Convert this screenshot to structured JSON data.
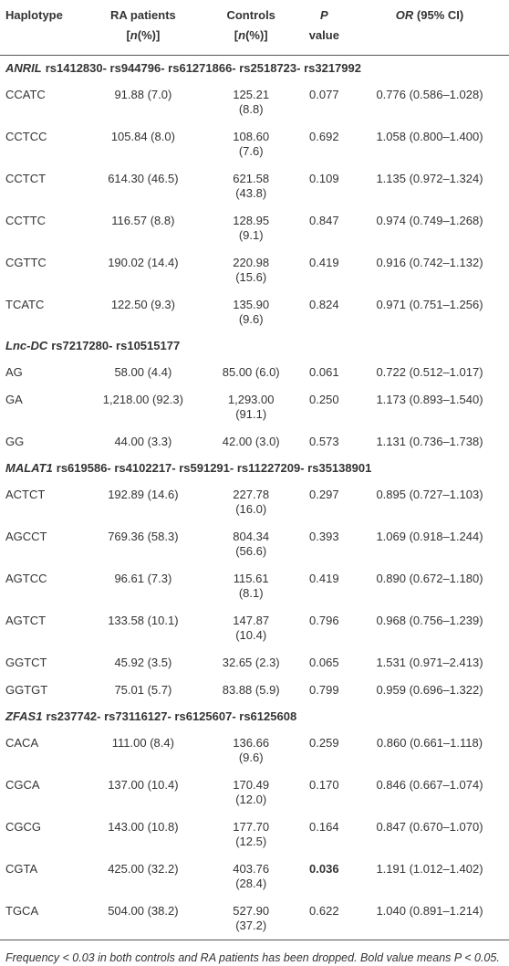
{
  "table": {
    "header": [
      [
        [
          {
            "text": "Haplotype",
            "italic": false
          }
        ]
      ],
      [
        [
          {
            "text": "RA patients",
            "italic": false
          }
        ],
        [
          {
            "text": "[",
            "italic": false
          },
          {
            "text": "n",
            "italic": true
          },
          {
            "text": "(%)]",
            "italic": false
          }
        ]
      ],
      [
        [
          {
            "text": "Controls",
            "italic": false
          }
        ],
        [
          {
            "text": "[",
            "italic": false
          },
          {
            "text": "n",
            "italic": true
          },
          {
            "text": "(%)]",
            "italic": false
          }
        ]
      ],
      [
        [
          {
            "text": "P",
            "italic": true
          }
        ],
        [
          {
            "text": "value",
            "italic": false
          }
        ]
      ],
      [
        [
          {
            "text": "OR",
            "italic": true
          },
          {
            "text": " (95% CI)",
            "italic": false
          }
        ]
      ]
    ],
    "groups": [
      {
        "gene": "ANRIL",
        "snps": "rs1412830- rs944796- rs61271866- rs2518723- rs3217992",
        "rows": [
          {
            "haplotype": "CCATC",
            "ra": "91.88 (7.0)",
            "controls": "125.21 (8.8)",
            "p": "0.077",
            "or": "0.776 (0.586–1.028)"
          },
          {
            "haplotype": "CCTCC",
            "ra": "105.84 (8.0)",
            "controls": "108.60 (7.6)",
            "p": "0.692",
            "or": "1.058 (0.800–1.400)"
          },
          {
            "haplotype": "CCTCT",
            "ra": "614.30 (46.5)",
            "controls": "621.58 (43.8)",
            "p": "0.109",
            "or": "1.135 (0.972–1.324)"
          },
          {
            "haplotype": "CCTTC",
            "ra": "116.57 (8.8)",
            "controls": "128.95 (9.1)",
            "p": "0.847",
            "or": "0.974 (0.749–1.268)"
          },
          {
            "haplotype": "CGTTC",
            "ra": "190.02 (14.4)",
            "controls": "220.98 (15.6)",
            "p": "0.419",
            "or": "0.916 (0.742–1.132)"
          },
          {
            "haplotype": "TCATC",
            "ra": "122.50 (9.3)",
            "controls": "135.90 (9.6)",
            "p": "0.824",
            "or": "0.971 (0.751–1.256)"
          }
        ]
      },
      {
        "gene": "Lnc-DC",
        "snps": "rs7217280- rs10515177",
        "rows": [
          {
            "haplotype": "AG",
            "ra": "58.00 (4.4)",
            "controls": "85.00 (6.0)",
            "p": "0.061",
            "or": "0.722 (0.512–1.017)"
          },
          {
            "haplotype": "GA",
            "ra": "1,218.00 (92.3)",
            "controls": "1,293.00 (91.1)",
            "p": "0.250",
            "or": "1.173 (0.893–1.540)"
          },
          {
            "haplotype": "GG",
            "ra": "44.00 (3.3)",
            "controls": "42.00 (3.0)",
            "p": "0.573",
            "or": "1.131 (0.736–1.738)"
          }
        ]
      },
      {
        "gene": "MALAT1",
        "snps": "rs619586- rs4102217- rs591291- rs11227209- rs35138901",
        "rows": [
          {
            "haplotype": "ACTCT",
            "ra": "192.89 (14.6)",
            "controls": "227.78 (16.0)",
            "p": "0.297",
            "or": "0.895 (0.727–1.103)"
          },
          {
            "haplotype": "AGCCT",
            "ra": "769.36 (58.3)",
            "controls": "804.34 (56.6)",
            "p": "0.393",
            "or": "1.069 (0.918–1.244)"
          },
          {
            "haplotype": "AGTCC",
            "ra": "96.61 (7.3)",
            "controls": "115.61 (8.1)",
            "p": "0.419",
            "or": "0.890 (0.672–1.180)"
          },
          {
            "haplotype": "AGTCT",
            "ra": "133.58 (10.1)",
            "controls": "147.87 (10.4)",
            "p": "0.796",
            "or": "0.968 (0.756–1.239)"
          },
          {
            "haplotype": "GGTCT",
            "ra": "45.92 (3.5)",
            "controls": "32.65 (2.3)",
            "p": "0.065",
            "or": "1.531 (0.971–2.413)"
          },
          {
            "haplotype": "GGTGT",
            "ra": "75.01 (5.7)",
            "controls": "83.88 (5.9)",
            "p": "0.799",
            "or": "0.959 (0.696–1.322)"
          }
        ]
      },
      {
        "gene": "ZFAS1",
        "snps": "rs237742- rs73116127- rs6125607- rs6125608",
        "rows": [
          {
            "haplotype": "CACA",
            "ra": "111.00 (8.4)",
            "controls": "136.66 (9.6)",
            "p": "0.259",
            "or": "0.860 (0.661–1.118)"
          },
          {
            "haplotype": "CGCA",
            "ra": "137.00 (10.4)",
            "controls": "170.49 (12.0)",
            "p": "0.170",
            "or": "0.846 (0.667–1.074)"
          },
          {
            "haplotype": "CGCG",
            "ra": "143.00 (10.8)",
            "controls": "177.70 (12.5)",
            "p": "0.164",
            "or": "0.847 (0.670–1.070)"
          },
          {
            "haplotype": "CGTA",
            "ra": "425.00 (32.2)",
            "controls": "403.76 (28.4)",
            "p": "0.036",
            "p_bold": true,
            "or": "1.191 (1.012–1.402)"
          },
          {
            "haplotype": "TGCA",
            "ra": "504.00 (38.2)",
            "controls": "527.90 (37.2)",
            "p": "0.622",
            "or": "1.040 (0.891–1.214)"
          }
        ]
      }
    ],
    "footnote": [
      {
        "text": "Frequency < 0.03 in both controls and RA patients has been dropped. Bold value means ",
        "italic": true
      },
      {
        "text": "P",
        "italic": true
      },
      {
        "text": " < 0.05.",
        "italic": true
      }
    ]
  }
}
